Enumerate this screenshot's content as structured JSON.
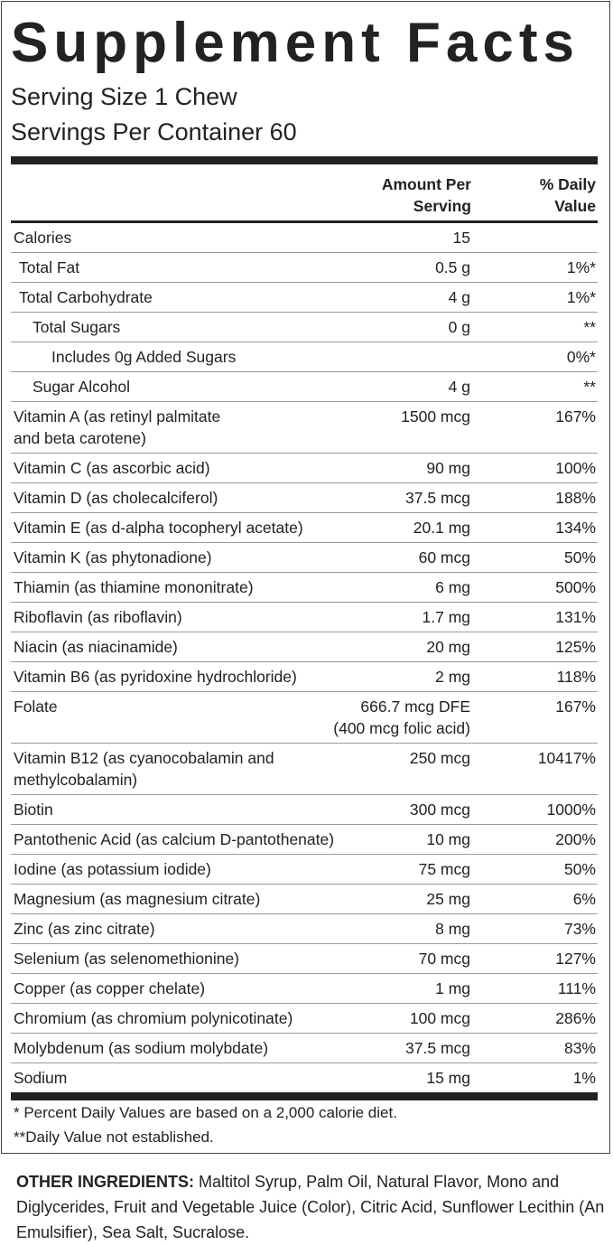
{
  "title": "Supplement Facts",
  "serving_size": "Serving Size 1 Chew",
  "servings_per_container": "Servings Per Container 60",
  "table": {
    "header": [
      "Amount Per\nServing",
      "% Daily\nValue"
    ],
    "rows": [
      [
        "Calories",
        "15",
        null
      ],
      [
        "Total Fat",
        "0.5 g",
        "1%*"
      ],
      [
        "Total Carbohydrate",
        "4 g",
        "1%*"
      ],
      [
        "Total Sugars",
        "0 g",
        "**"
      ],
      [
        "Includes 0g Added Sugars",
        null,
        "0%*"
      ],
      [
        "Sugar Alcohol",
        "4 g",
        "**"
      ],
      [
        "Vitamin A (as retinyl palmitate\nand beta carotene)",
        "1500 mcg",
        "167%"
      ],
      [
        "Vitamin C (as ascorbic acid)",
        "90 mg",
        "100%"
      ],
      [
        "Vitamin D (as cholecalciferol)",
        "37.5 mcg",
        "188%"
      ],
      [
        "Vitamin E (as d-alpha tocopheryl acetate)",
        "20.1 mg",
        "134%"
      ],
      [
        "Vitamin K (as phytonadione)",
        "60 mcg",
        "50%"
      ],
      [
        "Thiamin (as thiamine mononitrate)",
        "6 mg",
        "500%"
      ],
      [
        "Riboflavin (as riboflavin)",
        "1.7 mg",
        "131%"
      ],
      [
        "Niacin (as niacinamide)",
        "20 mg",
        "125%"
      ],
      [
        "Vitamin B6 (as pyridoxine hydrochloride)",
        "2 mg",
        "118%"
      ],
      [
        "Folate",
        "666.7 mcg DFE\n(400 mcg folic acid)",
        "167%"
      ],
      [
        "Vitamin B12 (as cyanocobalamin and\nmethylcobalamin)",
        "250 mcg",
        "10417%"
      ],
      [
        "Biotin",
        "300 mcg",
        "1000%"
      ],
      [
        "Pantothenic Acid (as calcium D-pantothenate)",
        "10 mg",
        "200%"
      ],
      [
        "Iodine (as potassium iodide)",
        "75 mcg",
        "50%"
      ],
      [
        "Magnesium (as magnesium citrate)",
        "25 mg",
        "6%"
      ],
      [
        "Zinc (as zinc citrate)",
        "8 mg",
        "73%"
      ],
      [
        "Selenium (as selenomethionine)",
        "70 mcg",
        "127%"
      ],
      [
        "Copper (as copper chelate)",
        "1 mg",
        "111%"
      ],
      [
        "Chromium (as chromium polynicotinate)",
        "100 mcg",
        "286%"
      ],
      [
        "Molybdenum (as sodium molybdate)",
        "37.5 mcg",
        "83%"
      ],
      [
        "Sodium",
        "15 mg",
        "1%"
      ]
    ]
  },
  "footnotes": [
    "* Percent Daily Values are based on a 2,000 calorie diet.",
    "**Daily Value not established."
  ],
  "other_ingredients": {
    "label": "OTHER INGREDIENTS:",
    "text": "Maltitol Syrup, Palm Oil, Natural Flavor, Mono and Diglycerides, Fruit and Vegetable Juice (Color), Citric Acid, Sunflower Lecithin (An Emulsifier), Sea Salt, Sucralose."
  }
}
